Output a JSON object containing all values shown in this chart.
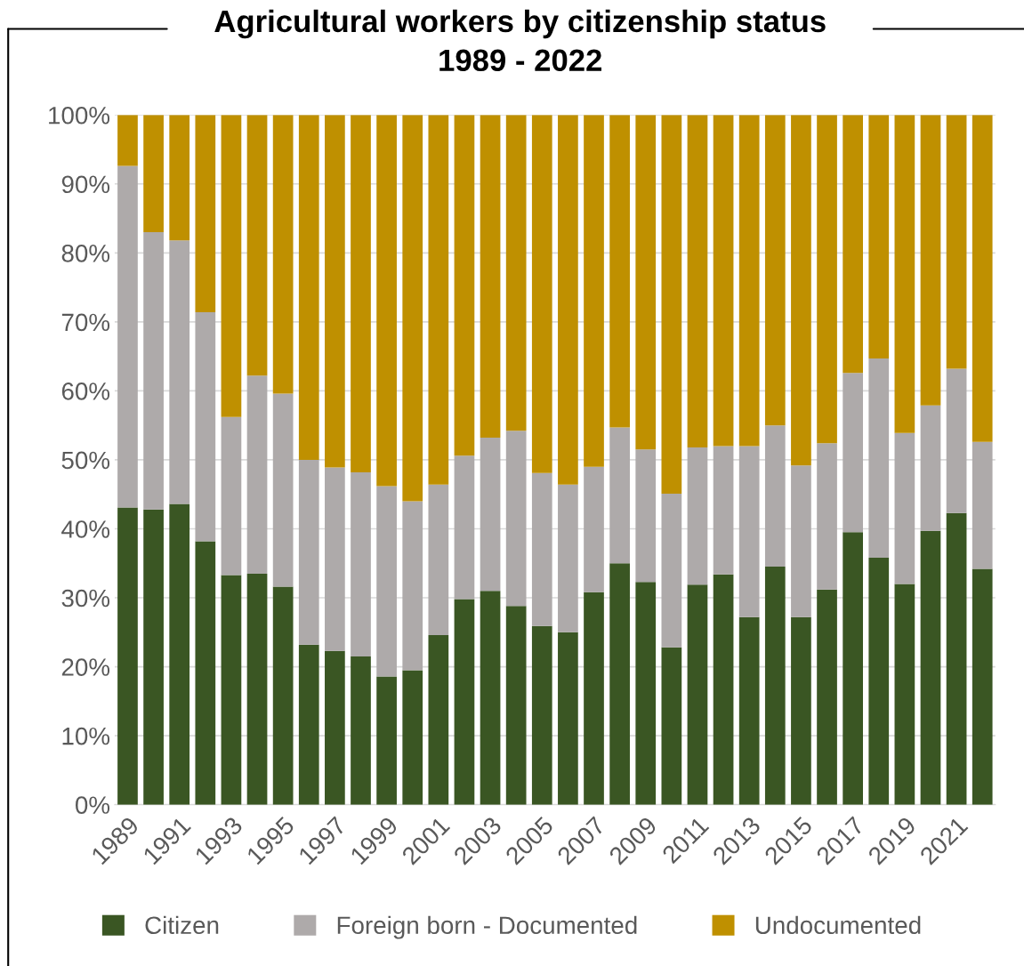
{
  "chart_data": {
    "type": "bar",
    "title": "Agricultural workers by citizenship status\n1989 - 2022",
    "stacked": true,
    "categories": [
      "1989",
      null,
      "1991",
      null,
      "1993",
      null,
      "1995",
      null,
      "1997",
      null,
      "1999",
      null,
      "2001",
      null,
      "2003",
      null,
      "2005",
      null,
      "2007",
      null,
      "2009",
      null,
      "2011",
      null,
      "2013",
      null,
      "2015",
      null,
      "2017",
      null,
      "2019",
      null,
      "2021",
      null
    ],
    "series": [
      {
        "name": "Citizen",
        "color": "#3a5623",
        "values": [
          43.1,
          42.8,
          43.6,
          38.2,
          33.3,
          33.5,
          31.6,
          23.2,
          22.3,
          21.5,
          18.6,
          19.5,
          24.6,
          29.8,
          31.0,
          28.8,
          25.9,
          25.0,
          30.8,
          35.0,
          32.3,
          22.8,
          31.9,
          33.4,
          27.2,
          34.5,
          27.2,
          31.2,
          39.5,
          35.8,
          32.0,
          39.7,
          42.3,
          34.2
        ]
      },
      {
        "name": "Foreign born - Documented",
        "color": "#aeaaaa",
        "values": [
          49.5,
          40.2,
          38.2,
          33.2,
          22.9,
          28.7,
          28.0,
          26.8,
          26.6,
          26.7,
          27.6,
          24.5,
          21.8,
          20.8,
          22.2,
          25.4,
          22.2,
          21.4,
          18.2,
          19.7,
          19.2,
          22.3,
          19.9,
          18.6,
          24.8,
          20.5,
          22.0,
          21.2,
          23.1,
          28.9,
          21.9,
          18.2,
          20.9,
          18.4
        ]
      },
      {
        "name": "Undocumented",
        "color": "#bf9000",
        "values": [
          7.4,
          17.0,
          18.2,
          28.6,
          43.8,
          37.8,
          40.4,
          50.0,
          51.1,
          51.8,
          53.8,
          56.0,
          53.6,
          49.4,
          46.8,
          45.8,
          51.9,
          53.6,
          51.0,
          45.3,
          48.5,
          54.9,
          48.2,
          48.0,
          48.0,
          45.0,
          50.8,
          47.6,
          37.4,
          35.3,
          46.1,
          42.1,
          36.8,
          47.4
        ]
      }
    ],
    "ylim": [
      0,
      100
    ],
    "yticks": [
      {
        "value": 0,
        "label": "0%"
      },
      {
        "value": 10,
        "label": "10%"
      },
      {
        "value": 20,
        "label": "20%"
      },
      {
        "value": 30,
        "label": "30%"
      },
      {
        "value": 40,
        "label": "40%"
      },
      {
        "value": 50,
        "label": "50%"
      },
      {
        "value": 60,
        "label": "60%"
      },
      {
        "value": 70,
        "label": "70%"
      },
      {
        "value": 80,
        "label": "80%"
      },
      {
        "value": 90,
        "label": "90%"
      },
      {
        "value": 100,
        "label": "100%"
      }
    ],
    "grid": "y",
    "legend": "bottom"
  }
}
